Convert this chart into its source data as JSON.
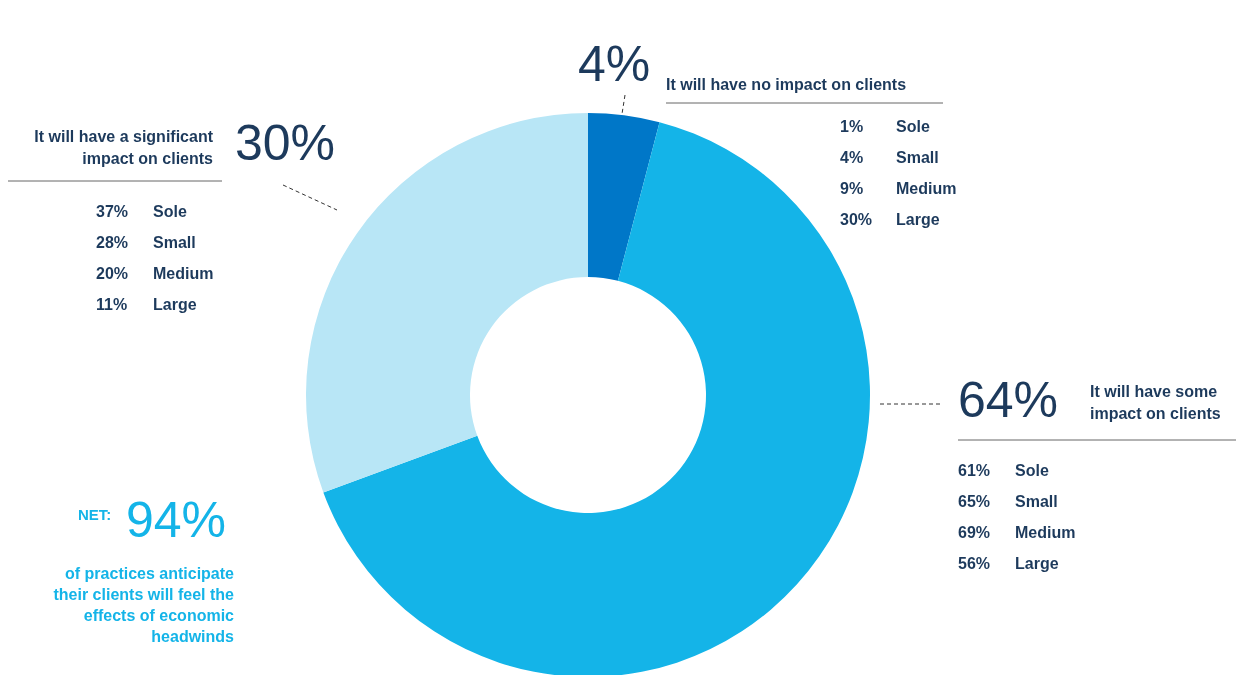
{
  "chart_data": {
    "type": "donut",
    "categories": [
      "It will have no impact on clients",
      "It will have some impact on clients",
      "It will have a significant impact on clients"
    ],
    "values": [
      4,
      64,
      30
    ],
    "value_labels": [
      "4%",
      "64%",
      "30%"
    ],
    "colors": [
      "#0077c8",
      "#14b4e8",
      "#b8e6f6"
    ],
    "annotations": [
      "1% Sole",
      "4% Small",
      "9% Medium",
      "30% Large",
      "61% Sole",
      "65% Small",
      "69% Medium",
      "56% Large",
      "37% Sole",
      "28% Small",
      "20% Medium",
      "11% Large",
      "NET:",
      "94%",
      "of practices anticipate their clients will feel the effects of economic headwinds"
    ]
  }
}
